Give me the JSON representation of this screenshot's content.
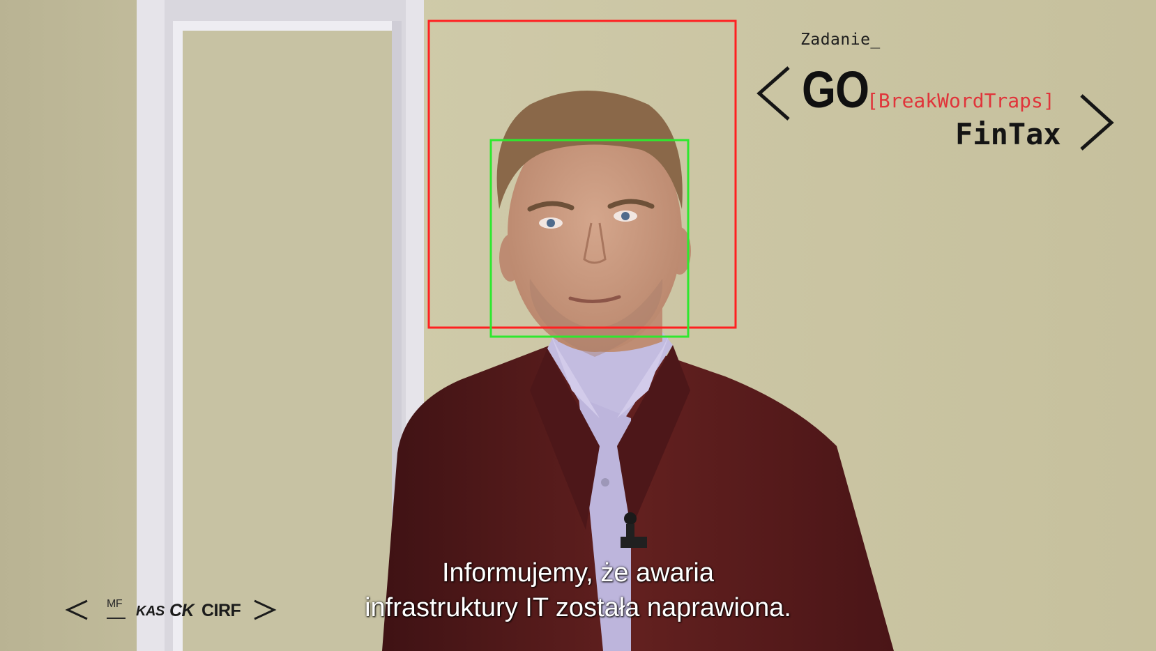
{
  "image": {
    "description_colors": {
      "wall": "#c9c4a2",
      "door_frame": "#e8e6ea",
      "jacket": "#5a1c1f",
      "shirt": "#c4bde0",
      "skin": "#c99a82",
      "hair": "#8b6a4c"
    }
  },
  "detections": {
    "outer_box_color": "#ff2020",
    "inner_box_color": "#2ee82e"
  },
  "branding": {
    "label": "Zadanie_",
    "go": "GO",
    "tag": "[BreakWordTraps]",
    "name": "FinTax",
    "accent_color": "#e0343a"
  },
  "subtitles": {
    "line1": "Informujemy, że awaria",
    "line2": "infrastruktury IT została naprawiona."
  },
  "footer_logos": {
    "mf": "MF",
    "kps": "KAS",
    "ck": "CK",
    "cirf": "CIRF"
  }
}
